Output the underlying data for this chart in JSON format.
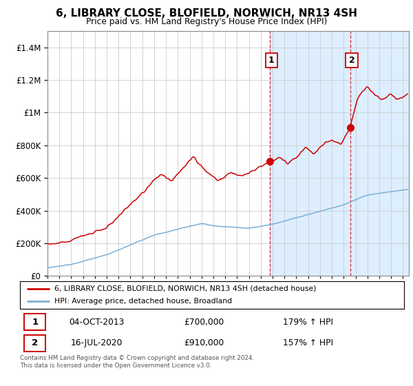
{
  "title": "6, LIBRARY CLOSE, BLOFIELD, NORWICH, NR13 4SH",
  "subtitle": "Price paid vs. HM Land Registry's House Price Index (HPI)",
  "legend_label_red": "6, LIBRARY CLOSE, BLOFIELD, NORWICH, NR13 4SH (detached house)",
  "legend_label_blue": "HPI: Average price, detached house, Broadland",
  "annotation1_date": "04-OCT-2013",
  "annotation1_price": "£700,000",
  "annotation1_hpi": "179% ↑ HPI",
  "annotation2_date": "16-JUL-2020",
  "annotation2_price": "£910,000",
  "annotation2_hpi": "157% ↑ HPI",
  "footer": "Contains HM Land Registry data © Crown copyright and database right 2024.\nThis data is licensed under the Open Government Licence v3.0.",
  "ylim": [
    0,
    1500000
  ],
  "yticks": [
    0,
    200000,
    400000,
    600000,
    800000,
    1000000,
    1200000,
    1400000
  ],
  "xlim_start": 1995.0,
  "xlim_end": 2025.5,
  "sale1_x": 2013.75,
  "sale1_y": 700000,
  "sale2_x": 2020.54,
  "sale2_y": 910000,
  "red_color": "#cc0000",
  "blue_color": "#7bafd4",
  "shade_color": "#ddeeff"
}
